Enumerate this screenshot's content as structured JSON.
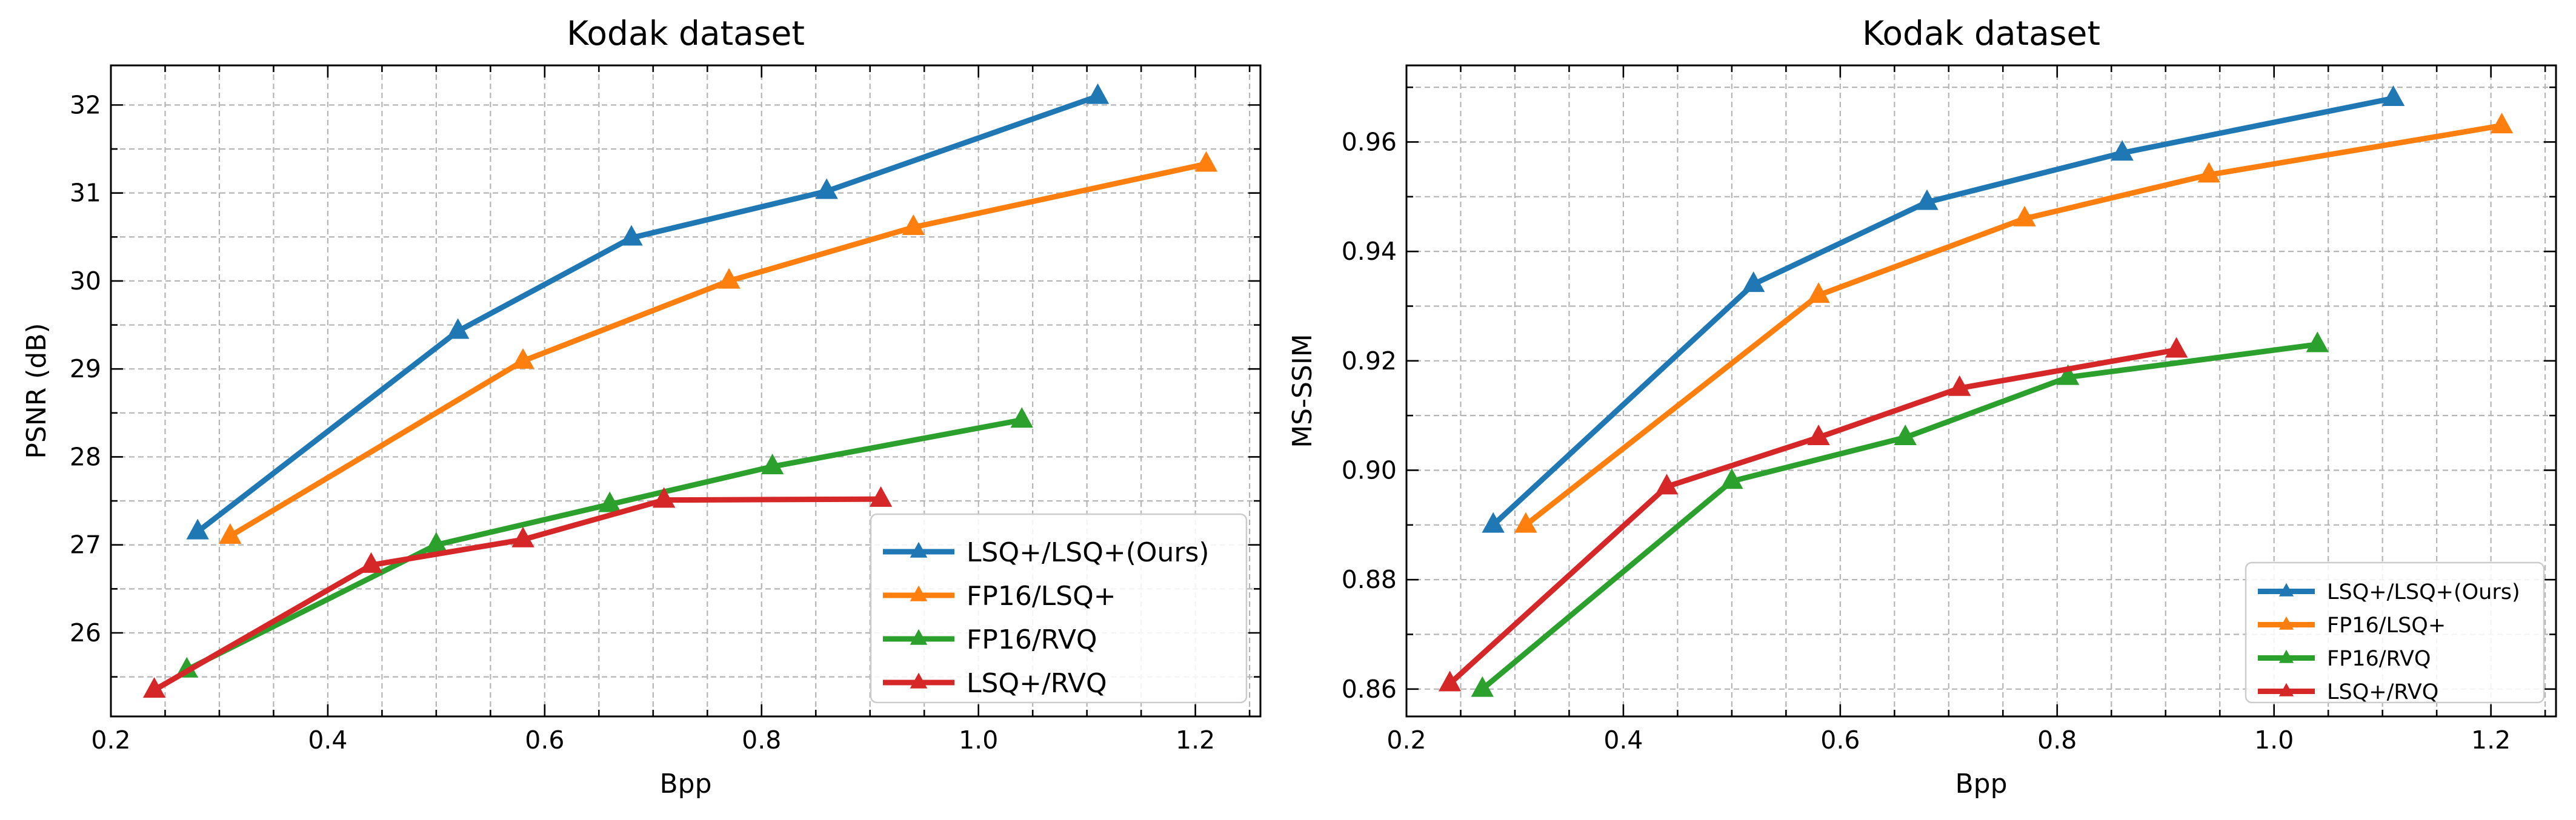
{
  "chart_data": [
    {
      "type": "line",
      "title": "Kodak dataset",
      "xlabel": "Bpp",
      "ylabel": "PSNR (dB)",
      "xlim": [
        0.2,
        1.26
      ],
      "ylim": [
        25.05,
        32.45
      ],
      "xticks": [
        0.2,
        0.4,
        0.6,
        0.8,
        1.0,
        1.2
      ],
      "xtick_labels": [
        "0.2",
        "0.4",
        "0.6",
        "0.8",
        "1.0",
        "1.2"
      ],
      "yticks": [
        26,
        27,
        28,
        29,
        30,
        31,
        32
      ],
      "ytick_labels": [
        "26",
        "27",
        "28",
        "29",
        "30",
        "31",
        "32"
      ],
      "grid": true,
      "legend_position": "bottom-right",
      "series": [
        {
          "name": "LSQ+/LSQ+(Ours)",
          "color": "#1f77b4",
          "x": [
            0.28,
            0.52,
            0.68,
            0.86,
            1.11
          ],
          "y": [
            27.15,
            29.43,
            30.49,
            31.02,
            32.1
          ]
        },
        {
          "name": "FP16/LSQ+",
          "color": "#ff7f0e",
          "x": [
            0.31,
            0.58,
            0.77,
            0.94,
            1.21
          ],
          "y": [
            27.1,
            29.09,
            30.0,
            30.61,
            31.33
          ]
        },
        {
          "name": "FP16/RVQ",
          "color": "#2ca02c",
          "x": [
            0.27,
            0.5,
            0.66,
            0.81,
            1.04
          ],
          "y": [
            25.58,
            27.0,
            27.46,
            27.89,
            28.42
          ]
        },
        {
          "name": "LSQ+/RVQ",
          "color": "#d62728",
          "x": [
            0.24,
            0.44,
            0.58,
            0.71,
            0.91
          ],
          "y": [
            25.35,
            26.77,
            27.06,
            27.51,
            27.52
          ]
        }
      ]
    },
    {
      "type": "line",
      "title": "Kodak dataset",
      "xlabel": "Bpp",
      "ylabel": "MS-SSIM",
      "xlim": [
        0.2,
        1.26
      ],
      "ylim": [
        0.855,
        0.974
      ],
      "xticks": [
        0.2,
        0.4,
        0.6,
        0.8,
        1.0,
        1.2
      ],
      "xtick_labels": [
        "0.2",
        "0.4",
        "0.6",
        "0.8",
        "1.0",
        "1.2"
      ],
      "yticks": [
        0.86,
        0.88,
        0.9,
        0.92,
        0.94,
        0.96
      ],
      "ytick_labels": [
        "0.86",
        "0.88",
        "0.90",
        "0.92",
        "0.94",
        "0.96"
      ],
      "grid": true,
      "legend_position": "bottom-right",
      "series": [
        {
          "name": "LSQ+/LSQ+(Ours)",
          "color": "#1f77b4",
          "x": [
            0.28,
            0.52,
            0.68,
            0.86,
            1.11
          ],
          "y": [
            0.89,
            0.934,
            0.949,
            0.958,
            0.968
          ]
        },
        {
          "name": "FP16/LSQ+",
          "color": "#ff7f0e",
          "x": [
            0.31,
            0.58,
            0.77,
            0.94,
            1.21
          ],
          "y": [
            0.89,
            0.932,
            0.946,
            0.954,
            0.963
          ]
        },
        {
          "name": "FP16/RVQ",
          "color": "#2ca02c",
          "x": [
            0.27,
            0.5,
            0.66,
            0.81,
            1.04
          ],
          "y": [
            0.86,
            0.898,
            0.906,
            0.917,
            0.923
          ]
        },
        {
          "name": "LSQ+/RVQ",
          "color": "#d62728",
          "x": [
            0.24,
            0.44,
            0.58,
            0.71,
            0.91
          ],
          "y": [
            0.861,
            0.897,
            0.906,
            0.915,
            0.922
          ]
        }
      ]
    }
  ]
}
